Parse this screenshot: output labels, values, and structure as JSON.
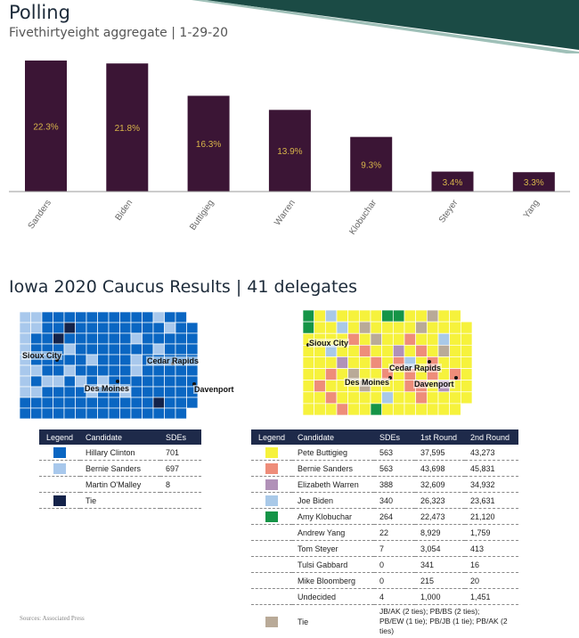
{
  "polling": {
    "title": "Polling",
    "subtitle": "Fivethirtyeight aggregate | 1-29-20"
  },
  "chart_data": {
    "type": "bar",
    "categories": [
      "Sanders",
      "Biden",
      "Buttigieg",
      "Warren",
      "Klobuchar",
      "Steyer",
      "Yang"
    ],
    "values": [
      22.3,
      21.8,
      16.3,
      13.9,
      9.3,
      3.4,
      3.3
    ],
    "labels": [
      "22.3%",
      "21.8%",
      "16.3%",
      "13.9%",
      "9.3%",
      "3.4%",
      "3.3%"
    ],
    "bar_color": "#3b1535",
    "label_color": "#d8b54a",
    "ylim": [
      0,
      23.5
    ]
  },
  "caucus": {
    "title": "Iowa 2020 Caucus Results | 41 delegates"
  },
  "map2016": {
    "cities": [
      "Sioux City",
      "Cedar Rapids",
      "Des Moines",
      "Davenport"
    ]
  },
  "map2020": {
    "cities": [
      "Sioux City",
      "Cedar Rapids",
      "Des Moines",
      "Davenport"
    ]
  },
  "table2016": {
    "headers": [
      "Legend",
      "Candidate",
      "SDEs"
    ],
    "rows": [
      {
        "color": "#0a66c2",
        "candidate": "Hillary Clinton",
        "sdes": "701"
      },
      {
        "color": "#a8c8ec",
        "candidate": "Bernie Sanders",
        "sdes": "697"
      },
      {
        "color": "",
        "candidate": "Martin O'Malley",
        "sdes": "8"
      },
      {
        "color": "#14234a",
        "candidate": "Tie",
        "sdes": ""
      }
    ]
  },
  "table2020": {
    "headers": [
      "Legend",
      "Candidate",
      "SDEs",
      "1st Round",
      "2nd Round"
    ],
    "rows": [
      {
        "color": "#f6f23c",
        "candidate": "Pete Buttigieg",
        "sdes": "563",
        "r1": "37,595",
        "r2": "43,273"
      },
      {
        "color": "#ee8d7a",
        "candidate": "Bernie Sanders",
        "sdes": "563",
        "r1": "43,698",
        "r2": "45,831"
      },
      {
        "color": "#b191b8",
        "candidate": "Elizabeth Warren",
        "sdes": "388",
        "r1": "32,609",
        "r2": "34,932"
      },
      {
        "color": "#a9c9e8",
        "candidate": "Joe Biden",
        "sdes": "340",
        "r1": "26,323",
        "r2": "23,631"
      },
      {
        "color": "#159447",
        "candidate": "Amy Klobuchar",
        "sdes": "264",
        "r1": "22,473",
        "r2": "21,120"
      },
      {
        "color": "",
        "candidate": "Andrew Yang",
        "sdes": "22",
        "r1": "8,929",
        "r2": "1,759"
      },
      {
        "color": "",
        "candidate": "Tom Steyer",
        "sdes": "7",
        "r1": "3,054",
        "r2": "413"
      },
      {
        "color": "",
        "candidate": "Tulsi Gabbard",
        "sdes": "0",
        "r1": "341",
        "r2": "16"
      },
      {
        "color": "",
        "candidate": "Mike Bloomberg",
        "sdes": "0",
        "r1": "215",
        "r2": "20"
      },
      {
        "color": "",
        "candidate": "Undecided",
        "sdes": "4",
        "r1": "1,000",
        "r2": "1,451"
      }
    ],
    "tie": {
      "color": "#b9aa98",
      "label": "Tie",
      "line1": "JB/AK (2 ties); PB/BS (2 ties);",
      "line2": "PB/EW (1 tie); PB/JB (1 tie); PB/AK (2 ties)"
    }
  },
  "source": "Sources: Associated Press",
  "colors": {
    "title": "#1d2b3a",
    "corner_band": "#1b4b45",
    "table_header": "#1e2a4a"
  }
}
